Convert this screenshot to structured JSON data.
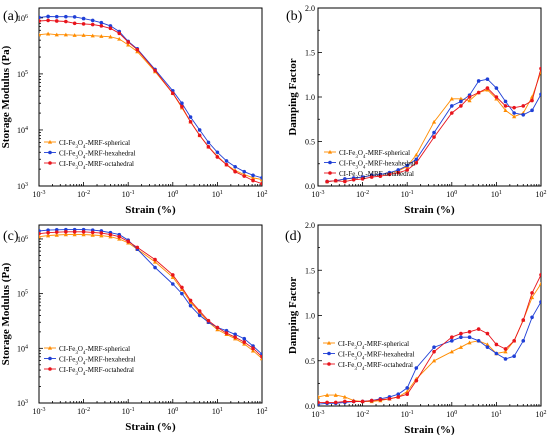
{
  "chart_data": [
    {
      "panel": "(a)",
      "type": "line",
      "xscale": "log",
      "yscale": "log",
      "xlim": [
        0.001,
        100
      ],
      "ylim": [
        1000,
        1500000
      ],
      "xlabel": "Strain (%)",
      "ylabel": "Storage Modulus (Pa)",
      "xticks": [
        {
          "v": 0.001,
          "b": "10",
          "e": "-3"
        },
        {
          "v": 0.01,
          "b": "10",
          "e": "-2"
        },
        {
          "v": 0.1,
          "b": "10",
          "e": "-1"
        },
        {
          "v": 1,
          "b": "10",
          "e": "0"
        },
        {
          "v": 10,
          "b": "10",
          "e": "1"
        },
        {
          "v": 100,
          "b": "10",
          "e": "2"
        }
      ],
      "yticks": [
        {
          "v": 1000,
          "b": "10",
          "e": "3"
        },
        {
          "v": 10000,
          "b": "10",
          "e": "4"
        },
        {
          "v": 100000,
          "b": "10",
          "e": "5"
        },
        {
          "v": 1000000,
          "b": "10",
          "e": "6"
        }
      ],
      "legend": "bottom-left",
      "series": [
        {
          "name": "CI-Fe3O4-MRF-spherical",
          "key": "spherical",
          "x": [
            0.001,
            0.0016,
            0.0025,
            0.004,
            0.0063,
            0.01,
            0.016,
            0.025,
            0.04,
            0.063,
            0.1,
            0.16,
            0.4,
            1,
            1.6,
            2.5,
            4,
            6.3,
            10,
            16,
            25,
            40,
            63,
            100
          ],
          "y": [
            500000,
            520000,
            500000,
            500000,
            490000,
            490000,
            480000,
            470000,
            460000,
            420000,
            330000,
            250000,
            110000,
            45000,
            25000,
            14000,
            8000,
            5000,
            3400,
            2400,
            1900,
            1600,
            1400,
            1300
          ]
        },
        {
          "name": "CI-Fe3O4-MRF-hexahedral",
          "key": "hexahedral",
          "x": [
            0.001,
            0.0016,
            0.0025,
            0.004,
            0.0063,
            0.01,
            0.016,
            0.025,
            0.04,
            0.063,
            0.1,
            0.16,
            0.4,
            1,
            1.6,
            2.5,
            4,
            6.3,
            10,
            16,
            25,
            40,
            63,
            100
          ],
          "y": [
            1020000,
            1060000,
            1050000,
            1050000,
            1040000,
            970000,
            900000,
            820000,
            720000,
            570000,
            380000,
            280000,
            120000,
            50000,
            30000,
            17000,
            10000,
            6000,
            4000,
            2800,
            2200,
            1800,
            1550,
            1400
          ]
        },
        {
          "name": "CI-Fe3O4-MRF-octahedral",
          "key": "octahedral",
          "x": [
            0.001,
            0.0016,
            0.0025,
            0.004,
            0.0063,
            0.01,
            0.016,
            0.025,
            0.04,
            0.063,
            0.1,
            0.16,
            0.4,
            1,
            1.6,
            2.5,
            4,
            6.3,
            10,
            16,
            25,
            40,
            63,
            100
          ],
          "y": [
            880000,
            900000,
            880000,
            860000,
            800000,
            780000,
            760000,
            720000,
            650000,
            530000,
            370000,
            270000,
            115000,
            45000,
            26000,
            14000,
            8000,
            5000,
            3300,
            2400,
            1800,
            1500,
            1250,
            1100
          ]
        }
      ]
    },
    {
      "panel": "(b)",
      "type": "line",
      "xscale": "log",
      "yscale": "linear",
      "xlim": [
        0.001,
        100
      ],
      "ylim": [
        0,
        2.0
      ],
      "xlabel": "Strain (%)",
      "ylabel": "Damping Factor",
      "xticks": [
        {
          "v": 0.001,
          "b": "10",
          "e": "-3"
        },
        {
          "v": 0.01,
          "b": "10",
          "e": "-2"
        },
        {
          "v": 0.1,
          "b": "10",
          "e": "-1"
        },
        {
          "v": 1,
          "b": "10",
          "e": "0"
        },
        {
          "v": 10,
          "b": "10",
          "e": "1"
        },
        {
          "v": 100,
          "b": "10",
          "e": "2"
        }
      ],
      "yticks": [
        {
          "v": 0,
          "t": "0.0"
        },
        {
          "v": 0.5,
          "t": "0.5"
        },
        {
          "v": 1.0,
          "t": "1.0"
        },
        {
          "v": 1.5,
          "t": "1.5"
        },
        {
          "v": 2.0,
          "t": "2.0"
        }
      ],
      "legend": "bottom-left",
      "series": [
        {
          "name": "CI-Fe3O4-MRF-spherical",
          "key": "spherical",
          "x": [
            0.0016,
            0.0025,
            0.004,
            0.0063,
            0.01,
            0.016,
            0.025,
            0.04,
            0.063,
            0.1,
            0.16,
            0.4,
            1,
            1.6,
            2.5,
            4,
            6.3,
            10,
            16,
            25,
            40,
            63,
            100
          ],
          "y": [
            0.05,
            0.06,
            0.08,
            0.09,
            0.1,
            0.12,
            0.13,
            0.15,
            0.17,
            0.22,
            0.35,
            0.72,
            0.98,
            0.98,
            0.96,
            1.05,
            1.08,
            0.98,
            0.85,
            0.78,
            0.82,
            1.0,
            1.28
          ]
        },
        {
          "name": "CI-Fe3O4-MRF-hexahedral",
          "key": "hexahedral",
          "x": [
            0.0016,
            0.0025,
            0.004,
            0.0063,
            0.01,
            0.016,
            0.025,
            0.04,
            0.063,
            0.1,
            0.16,
            0.4,
            1,
            1.6,
            2.5,
            4,
            6.3,
            10,
            16,
            25,
            40,
            63,
            100
          ],
          "y": [
            0.05,
            0.06,
            0.08,
            0.09,
            0.1,
            0.12,
            0.13,
            0.15,
            0.18,
            0.23,
            0.3,
            0.6,
            0.9,
            0.95,
            1.02,
            1.18,
            1.2,
            1.1,
            0.95,
            0.82,
            0.8,
            0.85,
            1.03
          ]
        },
        {
          "name": "CI-Fe3O4-MRF-octahedral",
          "key": "octahedral",
          "x": [
            0.0016,
            0.0025,
            0.004,
            0.0063,
            0.01,
            0.016,
            0.025,
            0.04,
            0.063,
            0.1,
            0.16,
            0.4,
            1,
            1.6,
            2.5,
            4,
            6.3,
            10,
            16,
            25,
            40,
            63,
            100
          ],
          "y": [
            0.05,
            0.06,
            0.05,
            0.07,
            0.08,
            0.1,
            0.11,
            0.13,
            0.15,
            0.18,
            0.26,
            0.55,
            0.82,
            0.9,
            1.0,
            1.05,
            1.1,
            1.0,
            0.9,
            0.88,
            0.9,
            0.96,
            1.32
          ]
        }
      ]
    },
    {
      "panel": "(c)",
      "type": "line",
      "xscale": "log",
      "yscale": "log",
      "xlim": [
        0.001,
        100
      ],
      "ylim": [
        1000,
        1800000
      ],
      "xlabel": "Strain (%)",
      "ylabel": "Storage Modulus (Pa)",
      "xticks": [
        {
          "v": 0.001,
          "b": "10",
          "e": "-3"
        },
        {
          "v": 0.01,
          "b": "10",
          "e": "-2"
        },
        {
          "v": 0.1,
          "b": "10",
          "e": "-1"
        },
        {
          "v": 1,
          "b": "10",
          "e": "0"
        },
        {
          "v": 10,
          "b": "10",
          "e": "1"
        },
        {
          "v": 100,
          "b": "10",
          "e": "2"
        }
      ],
      "yticks": [
        {
          "v": 1000,
          "b": "10",
          "e": "3"
        },
        {
          "v": 10000,
          "b": "10",
          "e": "4"
        },
        {
          "v": 100000,
          "b": "10",
          "e": "5"
        },
        {
          "v": 1000000,
          "b": "10",
          "e": "6"
        }
      ],
      "legend": "bottom-left",
      "series": [
        {
          "name": "CI-Fe3O4-MRF-spherical",
          "key": "spherical",
          "x": [
            0.001,
            0.0016,
            0.0025,
            0.004,
            0.0063,
            0.01,
            0.016,
            0.025,
            0.04,
            0.063,
            0.1,
            0.16,
            0.4,
            1,
            1.6,
            2.5,
            4,
            6.3,
            10,
            16,
            25,
            40,
            63,
            100
          ],
          "y": [
            1100000,
            1150000,
            1180000,
            1200000,
            1200000,
            1200000,
            1180000,
            1150000,
            1100000,
            1000000,
            850000,
            650000,
            380000,
            200000,
            120000,
            70000,
            45000,
            30000,
            22000,
            18000,
            15000,
            12000,
            9000,
            6500
          ]
        },
        {
          "name": "CI-Fe3O4-MRF-hexahedral",
          "key": "hexahedral",
          "x": [
            0.001,
            0.0016,
            0.0025,
            0.004,
            0.0063,
            0.01,
            0.016,
            0.025,
            0.04,
            0.063,
            0.1,
            0.16,
            0.4,
            1,
            1.6,
            2.5,
            4,
            6.3,
            10,
            16,
            25,
            40,
            63,
            100
          ],
          "y": [
            1400000,
            1450000,
            1470000,
            1480000,
            1480000,
            1480000,
            1450000,
            1400000,
            1300000,
            1200000,
            950000,
            650000,
            300000,
            150000,
            100000,
            60000,
            40000,
            30000,
            24000,
            21000,
            18000,
            15000,
            11000,
            7800
          ]
        },
        {
          "name": "CI-Fe3O4-MRF-octahedral",
          "key": "octahedral",
          "x": [
            0.001,
            0.0016,
            0.0025,
            0.004,
            0.0063,
            0.01,
            0.016,
            0.025,
            0.04,
            0.063,
            0.1,
            0.16,
            0.4,
            1,
            1.6,
            2.5,
            4,
            6.3,
            10,
            16,
            25,
            40,
            63,
            100
          ],
          "y": [
            1250000,
            1300000,
            1330000,
            1350000,
            1350000,
            1350000,
            1320000,
            1280000,
            1200000,
            1100000,
            900000,
            700000,
            420000,
            220000,
            130000,
            75000,
            48000,
            32000,
            24000,
            19000,
            16000,
            13000,
            10000,
            7000
          ]
        }
      ]
    },
    {
      "panel": "(d)",
      "type": "line",
      "xscale": "log",
      "yscale": "linear",
      "xlim": [
        0.001,
        100
      ],
      "ylim": [
        0,
        2.0
      ],
      "xlabel": "Strain (%)",
      "ylabel": "Damping Factor",
      "xticks": [
        {
          "v": 0.001,
          "b": "10",
          "e": "-3"
        },
        {
          "v": 0.01,
          "b": "10",
          "e": "-2"
        },
        {
          "v": 0.1,
          "b": "10",
          "e": "-1"
        },
        {
          "v": 1,
          "b": "10",
          "e": "0"
        },
        {
          "v": 10,
          "b": "10",
          "e": "1"
        },
        {
          "v": 100,
          "b": "10",
          "e": "2"
        }
      ],
      "yticks": [
        {
          "v": 0,
          "t": "0.0"
        },
        {
          "v": 0.5,
          "t": "0.5"
        },
        {
          "v": 1.0,
          "t": "1.0"
        },
        {
          "v": 1.5,
          "t": "1.5"
        },
        {
          "v": 2.0,
          "t": "2.0"
        }
      ],
      "legend": "left",
      "series": [
        {
          "name": "CI-Fe3O4-MRF-spherical",
          "key": "spherical",
          "x": [
            0.001,
            0.0016,
            0.0025,
            0.004,
            0.0063,
            0.01,
            0.016,
            0.025,
            0.04,
            0.063,
            0.1,
            0.16,
            0.4,
            1,
            1.6,
            2.5,
            4,
            6.3,
            10,
            16,
            25,
            40,
            63,
            100
          ],
          "y": [
            0.1,
            0.12,
            0.12,
            0.1,
            0.06,
            0.05,
            0.05,
            0.06,
            0.08,
            0.1,
            0.16,
            0.3,
            0.5,
            0.6,
            0.65,
            0.7,
            0.72,
            0.68,
            0.58,
            0.6,
            0.72,
            0.95,
            1.2,
            1.35
          ]
        },
        {
          "name": "CI-Fe3O4-MRF-hexahedral",
          "key": "hexahedral",
          "x": [
            0.001,
            0.0016,
            0.0025,
            0.004,
            0.0063,
            0.01,
            0.016,
            0.025,
            0.04,
            0.063,
            0.1,
            0.16,
            0.4,
            1,
            1.6,
            2.5,
            4,
            6.3,
            10,
            16,
            25,
            40,
            63,
            100
          ],
          "y": [
            0.02,
            0.03,
            0.03,
            0.04,
            0.05,
            0.05,
            0.06,
            0.08,
            0.1,
            0.13,
            0.2,
            0.42,
            0.65,
            0.72,
            0.76,
            0.76,
            0.72,
            0.65,
            0.58,
            0.52,
            0.55,
            0.72,
            0.98,
            1.15
          ]
        },
        {
          "name": "CI-Fe3O4-MRF-octahedral",
          "key": "octahedral",
          "x": [
            0.001,
            0.0016,
            0.0025,
            0.004,
            0.0063,
            0.01,
            0.016,
            0.025,
            0.04,
            0.063,
            0.1,
            0.16,
            0.4,
            1,
            1.6,
            2.5,
            4,
            6.3,
            10,
            16,
            25,
            40,
            63,
            100
          ],
          "y": [
            0.04,
            0.04,
            0.04,
            0.05,
            0.05,
            0.05,
            0.06,
            0.07,
            0.08,
            0.1,
            0.13,
            0.28,
            0.6,
            0.76,
            0.8,
            0.82,
            0.85,
            0.8,
            0.68,
            0.63,
            0.72,
            0.95,
            1.25,
            1.45
          ]
        }
      ]
    }
  ],
  "colors": {
    "spherical": "#ff8c00",
    "hexahedral": "#1f3fd6",
    "octahedral": "#e8141c"
  },
  "icons": {
    "spherical": "triangle-marker-icon",
    "hexahedral": "circle-marker-icon",
    "octahedral": "circle-marker-icon"
  }
}
